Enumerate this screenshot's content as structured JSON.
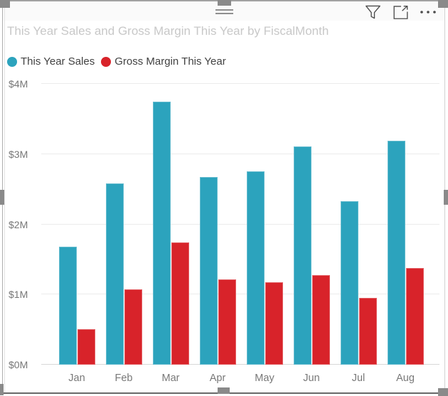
{
  "visual": {
    "title": "This Year Sales and Gross Margin This Year by FiscalMonth",
    "state": "selected"
  },
  "header": {
    "icons": [
      {
        "name": "filter-icon"
      },
      {
        "name": "focus-mode-icon"
      },
      {
        "name": "more-options-icon"
      }
    ],
    "drag_handle": "drag-grip"
  },
  "legend": {
    "items": [
      {
        "label": "This Year Sales",
        "color": "#2ca3bd"
      },
      {
        "label": "Gross Margin This Year",
        "color": "#d8232a"
      }
    ]
  },
  "chart_data": {
    "type": "bar",
    "title": "This Year Sales and Gross Margin This Year by FiscalMonth",
    "categories": [
      "Jan",
      "Feb",
      "Mar",
      "Apr",
      "May",
      "Jun",
      "Jul",
      "Aug"
    ],
    "series": [
      {
        "name": "This Year Sales",
        "color": "#2ca3bd",
        "values": [
          1.68,
          2.58,
          3.75,
          2.67,
          2.75,
          3.11,
          2.33,
          3.19
        ]
      },
      {
        "name": "Gross Margin This Year",
        "color": "#d8232a",
        "values": [
          0.51,
          1.07,
          1.74,
          1.22,
          1.17,
          1.28,
          0.95,
          1.38
        ]
      }
    ],
    "units": "$M",
    "xlabel": "",
    "ylabel": "",
    "ylim": [
      0,
      4
    ],
    "yticks": [
      0,
      1,
      2,
      3,
      4
    ],
    "ytick_labels": [
      "$0M",
      "$1M",
      "$2M",
      "$3M",
      "$4M"
    ],
    "grid": true,
    "legend_position": "top-left"
  },
  "colors": {
    "series_teal": "#2ca3bd",
    "series_red": "#d8232a",
    "title_text": "#c8c8c8",
    "axis_text": "#777777",
    "legend_text": "#424242",
    "gridline": "#ebebeb",
    "selection_handle": "#8a8a8a",
    "icon_stroke": "#4a4a4a"
  }
}
